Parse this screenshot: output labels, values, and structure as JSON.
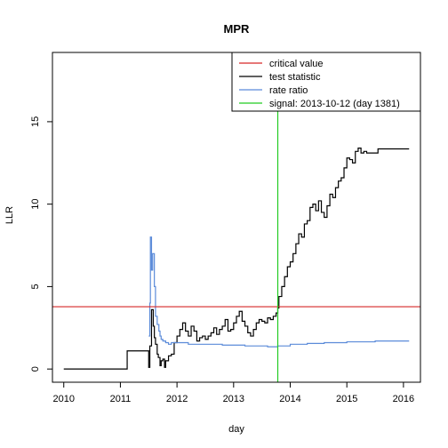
{
  "chart_data": {
    "type": "line",
    "title": "MPR",
    "xlabel": "day",
    "ylabel": "LLR",
    "xlim": [
      2009.8,
      2016.3
    ],
    "ylim": [
      -0.8,
      19.2
    ],
    "x_ticks": [
      2010,
      2011,
      2012,
      2013,
      2014,
      2015,
      2016
    ],
    "x_tick_labels": [
      "2010",
      "2011",
      "2012",
      "2013",
      "2014",
      "2015",
      "2016"
    ],
    "y_ticks": [
      0,
      5,
      10,
      15
    ],
    "y_tick_labels": [
      "0",
      "5",
      "10",
      "15"
    ],
    "grid": false,
    "legend_position": "top-right",
    "legend": [
      {
        "label": "critical value",
        "color": "#d62728"
      },
      {
        "label": "test statistic",
        "color": "#000000"
      },
      {
        "label": "rate ratio",
        "color": "#5b8bd9"
      },
      {
        "label": "signal: 2013-10-12 (day 1381)",
        "color": "#22cc22"
      }
    ],
    "critical_value": {
      "y": 3.78,
      "color": "#d62728"
    },
    "signal": {
      "x": 2013.78,
      "color": "#22cc22"
    },
    "series": [
      {
        "name": "test statistic",
        "color": "#000000",
        "x": [
          2010.0,
          2011.12,
          2011.12,
          2011.48,
          2011.5,
          2011.52,
          2011.55,
          2011.58,
          2011.6,
          2011.62,
          2011.65,
          2011.67,
          2011.7,
          2011.72,
          2011.75,
          2011.78,
          2011.8,
          2011.85,
          2011.9,
          2011.95,
          2012.0,
          2012.05,
          2012.1,
          2012.15,
          2012.2,
          2012.25,
          2012.3,
          2012.35,
          2012.4,
          2012.45,
          2012.5,
          2012.55,
          2012.6,
          2012.65,
          2012.7,
          2012.75,
          2012.8,
          2012.85,
          2012.9,
          2012.95,
          2013.0,
          2013.05,
          2013.1,
          2013.15,
          2013.2,
          2013.25,
          2013.3,
          2013.35,
          2013.4,
          2013.45,
          2013.5,
          2013.55,
          2013.6,
          2013.65,
          2013.7,
          2013.75,
          2013.78,
          2013.8,
          2013.85,
          2013.9,
          2013.95,
          2014.0,
          2014.05,
          2014.1,
          2014.15,
          2014.2,
          2014.25,
          2014.3,
          2014.35,
          2014.4,
          2014.45,
          2014.5,
          2014.55,
          2014.6,
          2014.65,
          2014.7,
          2014.75,
          2014.8,
          2014.85,
          2014.9,
          2014.95,
          2015.0,
          2015.05,
          2015.1,
          2015.15,
          2015.2,
          2015.25,
          2015.3,
          2015.35,
          2015.4,
          2015.5,
          2015.55,
          2016.1
        ],
        "y": [
          0.0,
          0.0,
          1.1,
          1.1,
          0.1,
          1.4,
          3.6,
          2.6,
          1.9,
          1.5,
          0.9,
          0.7,
          0.2,
          0.5,
          0.6,
          0.1,
          0.5,
          0.8,
          0.9,
          1.6,
          2.0,
          2.4,
          2.8,
          2.3,
          2.0,
          2.6,
          2.3,
          1.7,
          1.9,
          2.0,
          1.8,
          2.0,
          2.2,
          2.5,
          2.1,
          2.4,
          2.6,
          3.0,
          2.3,
          2.4,
          2.8,
          3.2,
          3.5,
          2.9,
          2.6,
          2.2,
          2.0,
          2.4,
          2.8,
          3.0,
          2.9,
          2.8,
          3.1,
          3.0,
          3.2,
          3.4,
          3.7,
          4.4,
          5.0,
          5.6,
          6.2,
          6.5,
          7.0,
          7.6,
          8.2,
          8.0,
          8.8,
          9.0,
          9.8,
          10.0,
          9.6,
          10.2,
          9.5,
          9.2,
          9.9,
          10.6,
          10.4,
          11.0,
          11.4,
          11.6,
          12.2,
          12.8,
          12.7,
          12.5,
          13.2,
          13.4,
          13.1,
          13.2,
          13.1,
          13.1,
          13.1,
          13.35,
          13.35
        ]
      },
      {
        "name": "rate ratio",
        "color": "#5b8bd9",
        "x": [
          2011.5,
          2011.52,
          2011.53,
          2011.55,
          2011.57,
          2011.6,
          2011.62,
          2011.65,
          2011.68,
          2011.7,
          2011.72,
          2011.75,
          2011.8,
          2011.85,
          2011.9,
          2012.0,
          2012.2,
          2012.5,
          2012.8,
          2013.0,
          2013.2,
          2013.4,
          2013.6,
          2013.78,
          2014.0,
          2014.3,
          2014.6,
          2015.0,
          2015.5,
          2016.1
        ],
        "y": [
          2.0,
          4.0,
          8.0,
          6.0,
          7.0,
          5.0,
          3.2,
          2.7,
          2.3,
          2.0,
          1.8,
          1.7,
          1.6,
          1.5,
          1.6,
          1.6,
          1.5,
          1.5,
          1.45,
          1.45,
          1.4,
          1.4,
          1.35,
          1.4,
          1.5,
          1.55,
          1.6,
          1.65,
          1.7,
          1.7
        ]
      }
    ]
  }
}
